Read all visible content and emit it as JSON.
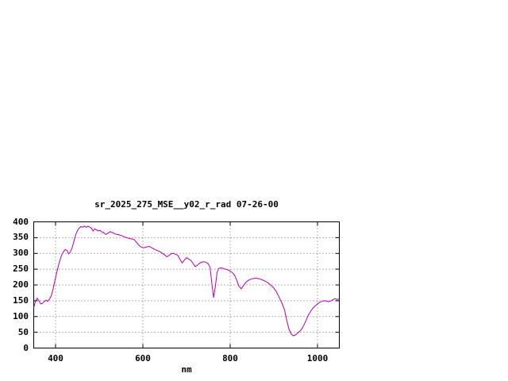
{
  "page": {
    "background": "#ffffff"
  },
  "chart_data": {
    "type": "line",
    "title": "sr_2025_275_MSE__y02_r_rad 07-26-00",
    "xlabel": "nm",
    "ylabel": "",
    "xlim": [
      350,
      1050
    ],
    "ylim": [
      0,
      400
    ],
    "xticks": [
      400,
      600,
      800,
      1000
    ],
    "yticks": [
      0,
      50,
      100,
      150,
      200,
      250,
      300,
      350,
      400
    ],
    "grid": true,
    "legend": "none",
    "line_color": "#b000b0",
    "series": [
      {
        "name": "sr_2025_275_MSE__y02_r_rad",
        "x": [
          350,
          354,
          358,
          362,
          366,
          370,
          374,
          378,
          382,
          386,
          390,
          394,
          398,
          402,
          406,
          410,
          414,
          418,
          422,
          426,
          430,
          434,
          438,
          442,
          446,
          450,
          454,
          458,
          462,
          466,
          470,
          474,
          478,
          482,
          486,
          490,
          494,
          498,
          502,
          506,
          510,
          515,
          520,
          525,
          530,
          535,
          540,
          545,
          550,
          555,
          560,
          565,
          570,
          575,
          580,
          585,
          590,
          595,
          600,
          605,
          610,
          615,
          620,
          625,
          630,
          635,
          640,
          645,
          650,
          655,
          660,
          665,
          670,
          675,
          680,
          685,
          690,
          695,
          700,
          705,
          710,
          715,
          720,
          725,
          730,
          735,
          740,
          745,
          750,
          754,
          758,
          762,
          766,
          770,
          774,
          778,
          782,
          786,
          790,
          795,
          800,
          805,
          810,
          815,
          820,
          825,
          830,
          835,
          840,
          845,
          850,
          855,
          860,
          865,
          870,
          875,
          880,
          885,
          890,
          895,
          900,
          905,
          910,
          915,
          920,
          925,
          930,
          935,
          940,
          945,
          950,
          955,
          960,
          965,
          970,
          975,
          980,
          985,
          990,
          995,
          1000,
          1005,
          1010,
          1015,
          1020,
          1025,
          1030,
          1035,
          1040,
          1045,
          1050
        ],
        "y": [
          128,
          148,
          158,
          150,
          140,
          142,
          148,
          152,
          148,
          155,
          165,
          185,
          210,
          235,
          258,
          278,
          295,
          305,
          312,
          310,
          298,
          305,
          318,
          338,
          358,
          372,
          380,
          385,
          383,
          387,
          383,
          386,
          384,
          380,
          371,
          378,
          374,
          371,
          373,
          368,
          366,
          360,
          364,
          369,
          366,
          363,
          360,
          359,
          357,
          354,
          351,
          349,
          347,
          346,
          344,
          336,
          327,
          321,
          318,
          319,
          321,
          322,
          318,
          314,
          311,
          308,
          305,
          300,
          295,
          289,
          294,
          299,
          300,
          297,
          294,
          281,
          270,
          279,
          286,
          282,
          278,
          268,
          258,
          263,
          269,
          272,
          274,
          271,
          267,
          255,
          205,
          160,
          195,
          240,
          252,
          254,
          253,
          251,
          250,
          247,
          244,
          239,
          231,
          215,
          196,
          188,
          197,
          207,
          213,
          217,
          219,
          221,
          222,
          220,
          218,
          215,
          212,
          208,
          203,
          197,
          190,
          180,
          167,
          152,
          138,
          118,
          85,
          58,
          44,
          39,
          42,
          48,
          54,
          63,
          76,
          92,
          107,
          118,
          127,
          134,
          140,
          145,
          148,
          150,
          149,
          147,
          149,
          153,
          157,
          154,
          156
        ]
      }
    ]
  }
}
